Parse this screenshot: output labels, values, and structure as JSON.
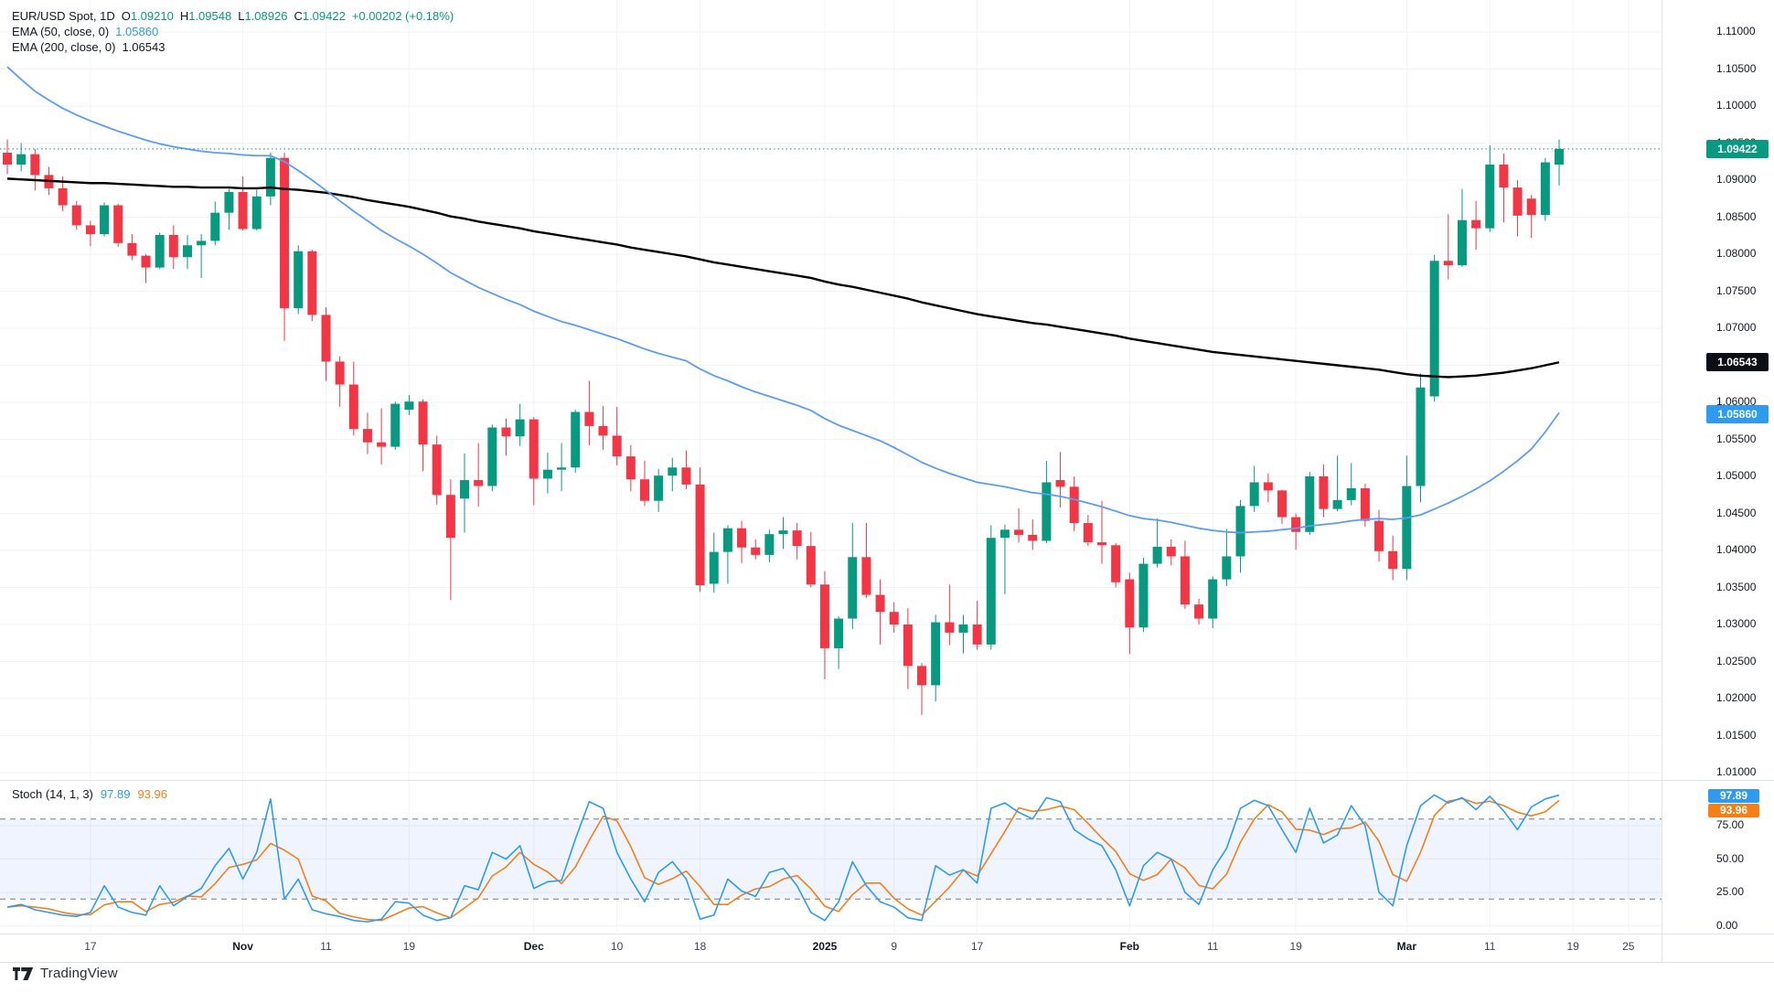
{
  "legend": {
    "symbol": "EUR/USD Spot, 1D",
    "o_label": "O",
    "o": "1.09210",
    "h_label": "H",
    "h": "1.09548",
    "l_label": "L",
    "l": "1.08926",
    "c_label": "C",
    "c": "1.09422",
    "change": "+0.00202 (+0.18%)",
    "ema50_name": "EMA (50, close, 0)",
    "ema50_value": "1.05860",
    "ema200_name": "EMA (200, close, 0)",
    "ema200_value": "1.06543",
    "stoch_name": "Stoch (14, 1, 3)",
    "stoch_k_value": "97.89",
    "stoch_d_value": "93.96"
  },
  "watermark": "TradingView",
  "colors": {
    "up": "#089981",
    "down": "#f23645",
    "ema50": "#5b9cf6",
    "ema200": "#000000",
    "stoch_k": "#2e9bf0",
    "stoch_d": "#f57f17",
    "grid": "#f0f3fa",
    "band_fill": "rgba(41,98,255,0.07)",
    "band_line": "#787b86",
    "current_price_line": "#089981"
  },
  "price_axis": {
    "labels": [
      "1.11000",
      "1.10500",
      "1.10000",
      "1.09500",
      "1.09000",
      "1.08500",
      "1.08000",
      "1.07500",
      "1.07000",
      "1.06500",
      "1.06000",
      "1.05500",
      "1.05000",
      "1.04500",
      "1.04000",
      "1.03500",
      "1.03000",
      "1.02500",
      "1.02000",
      "1.01500",
      "1.01000"
    ],
    "last_price_label": "1.09422",
    "ema200_label": "1.06543",
    "ema50_label": "1.05860"
  },
  "stoch_axis": {
    "labels": [
      "75.00",
      "50.00",
      "25.00",
      "0.00"
    ],
    "k_label": "97.89",
    "d_label": "93.96"
  },
  "time_axis": {
    "ticks": [
      {
        "label": "17",
        "i": 6
      },
      {
        "label": "Nov",
        "i": 17,
        "major": true
      },
      {
        "label": "11",
        "i": 23
      },
      {
        "label": "19",
        "i": 29
      },
      {
        "label": "Dec",
        "i": 38,
        "major": true
      },
      {
        "label": "10",
        "i": 44
      },
      {
        "label": "18",
        "i": 50
      },
      {
        "label": "2025",
        "i": 59,
        "major": true
      },
      {
        "label": "9",
        "i": 64
      },
      {
        "label": "17",
        "i": 70
      },
      {
        "label": "Feb",
        "i": 81,
        "major": true
      },
      {
        "label": "11",
        "i": 87
      },
      {
        "label": "19",
        "i": 93
      },
      {
        "label": "Mar",
        "i": 101,
        "major": true
      },
      {
        "label": "11",
        "i": 107
      },
      {
        "label": "19",
        "i": 113
      },
      {
        "label": "25",
        "i": 117
      }
    ]
  },
  "chart_data": {
    "type": "candlestick",
    "title": "EUR/USD Spot, 1D with EMA(50), EMA(200) and Stoch(14,1,3)",
    "price_ylim": [
      1.0091,
      1.1143
    ],
    "stoch_ylim": [
      0,
      100
    ],
    "current_price": 1.09422,
    "stoch_upper_band": 80,
    "stoch_lower_band": 20,
    "candles": [
      [
        1.0937,
        1.0955,
        1.0908,
        1.0921
      ],
      [
        1.0921,
        1.095,
        1.0912,
        1.0935
      ],
      [
        1.0935,
        1.0942,
        1.0886,
        1.0907
      ],
      [
        1.0907,
        1.0918,
        1.088,
        1.0889
      ],
      [
        1.0889,
        1.0905,
        1.0858,
        1.0866
      ],
      [
        1.0866,
        1.0872,
        1.0833,
        1.0839
      ],
      [
        1.0839,
        1.0845,
        1.0811,
        1.0827
      ],
      [
        1.0827,
        1.087,
        1.0824,
        1.0866
      ],
      [
        1.0866,
        1.0868,
        1.081,
        1.0815
      ],
      [
        1.0815,
        1.0827,
        1.0792,
        1.0798
      ],
      [
        1.0798,
        1.08,
        1.0761,
        1.0782
      ],
      [
        1.0782,
        1.0829,
        1.078,
        1.0826
      ],
      [
        1.0826,
        1.0839,
        1.078,
        1.0796
      ],
      [
        1.0796,
        1.0826,
        1.078,
        1.0812
      ],
      [
        1.0812,
        1.0827,
        1.0768,
        1.0818
      ],
      [
        1.0818,
        1.0871,
        1.0812,
        1.0856
      ],
      [
        1.0856,
        1.0888,
        1.0833,
        1.0884
      ],
      [
        1.0884,
        1.0905,
        1.0832,
        1.0834
      ],
      [
        1.0834,
        1.0887,
        1.0832,
        1.0878
      ],
      [
        1.0878,
        1.0937,
        1.0866,
        1.093
      ],
      [
        1.093,
        1.0937,
        1.0683,
        1.0727
      ],
      [
        1.0727,
        1.0812,
        1.0719,
        1.0804
      ],
      [
        1.0804,
        1.0806,
        1.071,
        1.0718
      ],
      [
        1.0718,
        1.0728,
        1.0629,
        1.0655
      ],
      [
        1.0655,
        1.0662,
        1.0594,
        1.0624
      ],
      [
        1.0624,
        1.0655,
        1.0555,
        1.0564
      ],
      [
        1.0564,
        1.0586,
        1.053,
        1.0546
      ],
      [
        1.0546,
        1.0592,
        1.0516,
        1.054
      ],
      [
        1.054,
        1.0601,
        1.0536,
        1.0598
      ],
      [
        1.059,
        1.061,
        1.0583,
        1.0601
      ],
      [
        1.0601,
        1.0604,
        1.0507,
        1.0543
      ],
      [
        1.0543,
        1.0555,
        1.0462,
        1.0475
      ],
      [
        1.0475,
        1.0496,
        1.0333,
        1.0417
      ],
      [
        1.047,
        1.0531,
        1.0424,
        1.0495
      ],
      [
        1.0495,
        1.0545,
        1.0459,
        1.0487
      ],
      [
        1.0487,
        1.057,
        1.048,
        1.0566
      ],
      [
        1.0566,
        1.0578,
        1.0528,
        1.0554
      ],
      [
        1.0554,
        1.0598,
        1.0541,
        1.0577
      ],
      [
        1.0577,
        1.058,
        1.0461,
        1.0497
      ],
      [
        1.0497,
        1.0532,
        1.0477,
        1.0509
      ],
      [
        1.0509,
        1.0545,
        1.048,
        1.0512
      ],
      [
        1.0512,
        1.059,
        1.0505,
        1.0587
      ],
      [
        1.0587,
        1.0629,
        1.0542,
        1.0568
      ],
      [
        1.0568,
        1.0595,
        1.0536,
        1.0555
      ],
      [
        1.0555,
        1.0594,
        1.0515,
        1.0527
      ],
      [
        1.0527,
        1.0542,
        1.048,
        1.0496
      ],
      [
        1.0496,
        1.0521,
        1.046,
        1.0467
      ],
      [
        1.0467,
        1.051,
        1.0452,
        1.0501
      ],
      [
        1.0501,
        1.0525,
        1.048,
        1.0512
      ],
      [
        1.0512,
        1.0535,
        1.0483,
        1.0489
      ],
      [
        1.0489,
        1.0512,
        1.0344,
        1.0353
      ],
      [
        1.0355,
        1.0424,
        1.0343,
        1.0398
      ],
      [
        1.0398,
        1.0434,
        1.0355,
        1.043
      ],
      [
        1.043,
        1.044,
        1.0383,
        1.0404
      ],
      [
        1.0404,
        1.0415,
        1.0388,
        1.0394
      ],
      [
        1.0394,
        1.0428,
        1.0384,
        1.0422
      ],
      [
        1.0422,
        1.0445,
        1.0402,
        1.0427
      ],
      [
        1.0427,
        1.0437,
        1.0388,
        1.0406
      ],
      [
        1.0406,
        1.0425,
        1.035,
        1.0354
      ],
      [
        1.0354,
        1.0372,
        1.0226,
        1.0268
      ],
      [
        1.0268,
        1.0311,
        1.024,
        1.0308
      ],
      [
        1.0308,
        1.0437,
        1.0294,
        1.0391
      ],
      [
        1.0391,
        1.0437,
        1.0336,
        1.034
      ],
      [
        1.034,
        1.0361,
        1.0273,
        1.0317
      ],
      [
        1.0317,
        1.033,
        1.0289,
        1.03
      ],
      [
        1.03,
        1.0322,
        1.0213,
        1.0244
      ],
      [
        1.0244,
        1.0248,
        1.0178,
        1.0218
      ],
      [
        1.0218,
        1.0313,
        1.0196,
        1.0303
      ],
      [
        1.0303,
        1.0354,
        1.0272,
        1.0289
      ],
      [
        1.0289,
        1.0313,
        1.0261,
        1.03
      ],
      [
        1.03,
        1.0332,
        1.0266,
        1.0273
      ],
      [
        1.0273,
        1.0434,
        1.0266,
        1.0417
      ],
      [
        1.0417,
        1.0435,
        1.0341,
        1.0428
      ],
      [
        1.0428,
        1.0457,
        1.0411,
        1.0421
      ],
      [
        1.0421,
        1.0442,
        1.0401,
        1.0413
      ],
      [
        1.0413,
        1.0521,
        1.041,
        1.0492
      ],
      [
        1.0495,
        1.0533,
        1.0458,
        1.0486
      ],
      [
        1.0486,
        1.05,
        1.0426,
        1.0437
      ],
      [
        1.0437,
        1.0448,
        1.0406,
        1.0411
      ],
      [
        1.0411,
        1.0467,
        1.0382,
        1.0407
      ],
      [
        1.0407,
        1.041,
        1.035,
        1.0357
      ],
      [
        1.0361,
        1.037,
        1.026,
        1.0296
      ],
      [
        1.0296,
        1.039,
        1.029,
        1.0382
      ],
      [
        1.0382,
        1.0443,
        1.0377,
        1.0405
      ],
      [
        1.0405,
        1.0415,
        1.038,
        1.0392
      ],
      [
        1.0392,
        1.0413,
        1.0321,
        1.0327
      ],
      [
        1.0327,
        1.0335,
        1.03,
        1.0308
      ],
      [
        1.0308,
        1.0365,
        1.0295,
        1.0361
      ],
      [
        1.0361,
        1.0429,
        1.0352,
        1.0392
      ],
      [
        1.0392,
        1.0468,
        1.037,
        1.046
      ],
      [
        1.046,
        1.0514,
        1.0452,
        1.0492
      ],
      [
        1.0492,
        1.0504,
        1.0465,
        1.0481
      ],
      [
        1.0481,
        1.0482,
        1.0436,
        1.0445
      ],
      [
        1.0445,
        1.045,
        1.0401,
        1.0425
      ],
      [
        1.0425,
        1.0506,
        1.0421,
        1.05
      ],
      [
        1.05,
        1.0516,
        1.0445,
        1.0456
      ],
      [
        1.0456,
        1.0528,
        1.0453,
        1.0468
      ],
      [
        1.0468,
        1.0518,
        1.0461,
        1.0484
      ],
      [
        1.0484,
        1.049,
        1.0432,
        1.044
      ],
      [
        1.044,
        1.0455,
        1.0385,
        1.0399
      ],
      [
        1.0399,
        1.042,
        1.036,
        1.0375
      ],
      [
        1.0375,
        1.0528,
        1.036,
        1.0487
      ],
      [
        1.0487,
        1.0639,
        1.0465,
        1.062
      ],
      [
        1.0608,
        1.0799,
        1.0601,
        1.0791
      ],
      [
        1.0791,
        1.0854,
        1.0766,
        1.0785
      ],
      [
        1.0785,
        1.0888,
        1.0783,
        1.0846
      ],
      [
        1.0846,
        1.0872,
        1.0806,
        1.0835
      ],
      [
        1.0835,
        1.0947,
        1.083,
        1.0921
      ],
      [
        1.0921,
        1.0936,
        1.0843,
        1.089
      ],
      [
        1.089,
        1.09,
        1.0824,
        1.0852
      ],
      [
        1.0875,
        1.088,
        1.0822,
        1.0853
      ],
      [
        1.0853,
        1.093,
        1.0845,
        1.0924
      ],
      [
        1.0921,
        1.09548,
        1.08926,
        1.09422
      ]
    ],
    "ema50": [
      1.1053,
      1.1036,
      1.102,
      1.1008,
      1.0997,
      1.0988,
      1.098,
      1.0973,
      1.0966,
      1.096,
      1.0954,
      1.0949,
      1.0945,
      1.0942,
      1.0939,
      1.0937,
      1.0936,
      1.0934,
      1.0933,
      1.0933,
      1.0925,
      1.0913,
      1.09,
      1.0886,
      1.0872,
      1.0858,
      1.0845,
      1.0832,
      1.0821,
      1.0811,
      1.08,
      1.0788,
      1.0775,
      1.0765,
      1.0755,
      1.0747,
      1.0739,
      1.0732,
      1.0723,
      1.0716,
      1.0709,
      1.0704,
      1.0698,
      1.0692,
      1.0686,
      1.0679,
      1.0672,
      1.0666,
      1.0661,
      1.0656,
      1.0645,
      1.0636,
      1.0629,
      1.0621,
      1.0614,
      1.0608,
      1.0602,
      1.0596,
      1.0589,
      1.0578,
      1.0569,
      1.0562,
      1.0555,
      1.0548,
      1.0539,
      1.0529,
      1.0519,
      1.0511,
      1.0504,
      1.0498,
      1.0492,
      1.0489,
      1.0486,
      1.0482,
      1.0478,
      1.0476,
      1.0473,
      1.0469,
      1.0464,
      1.0459,
      1.0453,
      1.0447,
      1.0443,
      1.0441,
      1.0438,
      1.0434,
      1.043,
      1.0427,
      1.0425,
      1.0424,
      1.0425,
      1.0426,
      1.0428,
      1.043,
      1.0433,
      1.0435,
      1.0437,
      1.044,
      1.0442,
      1.0443,
      1.0442,
      1.0444,
      1.0448,
      1.0456,
      1.0464,
      1.0473,
      1.0483,
      1.0494,
      1.0507,
      1.0521,
      1.0537,
      1.056,
      1.0586
    ],
    "ema200": [
      1.0902,
      1.0901,
      1.09,
      1.0899,
      1.0898,
      1.0897,
      1.0896,
      1.0896,
      1.0895,
      1.0894,
      1.0893,
      1.0892,
      1.0891,
      1.0891,
      1.089,
      1.089,
      1.089,
      1.0889,
      1.0889,
      1.089,
      1.0888,
      1.0887,
      1.0885,
      1.0883,
      1.088,
      1.0877,
      1.0873,
      1.087,
      1.0867,
      1.0864,
      1.086,
      1.0856,
      1.0851,
      1.0848,
      1.0844,
      1.0841,
      1.0838,
      1.0835,
      1.0831,
      1.0828,
      1.0825,
      1.0822,
      1.0819,
      1.0816,
      1.0813,
      1.0809,
      1.0806,
      1.0803,
      1.08,
      1.0797,
      1.0793,
      1.0789,
      1.0786,
      1.0783,
      1.078,
      1.0777,
      1.0774,
      1.0771,
      1.0768,
      1.0763,
      1.0759,
      1.0756,
      1.0752,
      1.0748,
      1.0744,
      1.074,
      1.0735,
      1.0731,
      1.0727,
      1.0723,
      1.0719,
      1.0716,
      1.0713,
      1.071,
      1.0707,
      1.0705,
      1.0702,
      1.0699,
      1.0696,
      1.0693,
      1.069,
      1.0686,
      1.0683,
      1.068,
      1.0677,
      1.0674,
      1.0671,
      1.0668,
      1.0666,
      1.0664,
      1.0662,
      1.066,
      1.0658,
      1.0656,
      1.0654,
      1.0652,
      1.065,
      1.0648,
      1.0646,
      1.0644,
      1.0641,
      1.0638,
      1.0636,
      1.0635,
      1.0634,
      1.0635,
      1.0636,
      1.0638,
      1.064,
      1.0643,
      1.0646,
      1.065,
      1.0654
    ],
    "stoch_k": [
      14,
      16,
      12,
      10,
      8,
      7,
      10,
      30,
      14,
      10,
      8,
      30,
      15,
      22,
      28,
      45,
      58,
      35,
      55,
      95,
      20,
      35,
      12,
      9,
      7,
      4,
      3,
      5,
      18,
      17,
      8,
      4,
      6,
      30,
      27,
      55,
      50,
      60,
      28,
      33,
      34,
      65,
      93,
      88,
      55,
      35,
      18,
      40,
      48,
      35,
      5,
      8,
      35,
      26,
      22,
      40,
      43,
      30,
      10,
      4,
      18,
      48,
      30,
      18,
      14,
      6,
      4,
      45,
      38,
      42,
      32,
      88,
      92,
      85,
      80,
      96,
      93,
      72,
      65,
      60,
      42,
      15,
      45,
      55,
      50,
      25,
      16,
      42,
      58,
      88,
      94,
      90,
      72,
      55,
      88,
      62,
      68,
      90,
      75,
      25,
      15,
      60,
      90,
      98,
      92,
      96,
      87,
      97,
      86,
      72,
      89,
      95,
      97.89
    ]
  }
}
